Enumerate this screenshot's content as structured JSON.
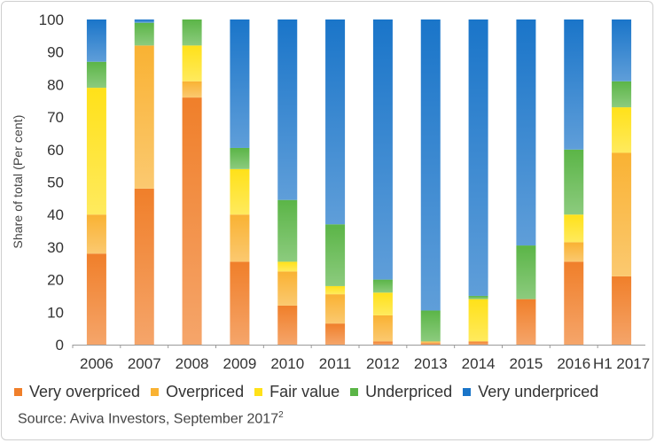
{
  "chart_data": {
    "type": "bar",
    "stacked": true,
    "categories": [
      "2006",
      "2007",
      "2008",
      "2009",
      "2010",
      "2011",
      "2012",
      "2013",
      "2014",
      "2015",
      "2016",
      "H1 2017"
    ],
    "ylabel": "Share of total (Per cent)",
    "ylim": [
      0,
      100
    ],
    "yticks": [
      "0",
      "10",
      "20",
      "30",
      "40",
      "50",
      "60",
      "70",
      "80",
      "90",
      "100"
    ],
    "grid": false,
    "legend_position": "bottom",
    "series": [
      {
        "name": "Very overpriced",
        "color": "#f07f2a",
        "values": [
          28,
          48,
          76,
          25.5,
          12,
          6.5,
          1,
          0.5,
          1,
          14,
          25.5,
          21
        ]
      },
      {
        "name": "Overpriced",
        "color": "#f9b233",
        "values": [
          12,
          44,
          5,
          14.5,
          10.5,
          9,
          8,
          0.5,
          0,
          0,
          6,
          38
        ]
      },
      {
        "name": "Fair value",
        "color": "#ffe119",
        "values": [
          39,
          0,
          11,
          14,
          3,
          2.5,
          7,
          0,
          13,
          0,
          8.5,
          14
        ]
      },
      {
        "name": "Underpriced",
        "color": "#5bb547",
        "values": [
          8,
          7,
          8,
          6.5,
          19,
          19,
          4,
          9.5,
          1,
          16.5,
          20,
          8
        ]
      },
      {
        "name": "Very underpriced",
        "color": "#1a75c9",
        "values": [
          13,
          1,
          0,
          39.5,
          55.5,
          63,
          80,
          89.5,
          85,
          69.5,
          40,
          19
        ]
      }
    ]
  },
  "source_text": "Source: Aviva Investors, September 2017",
  "source_note": "2"
}
